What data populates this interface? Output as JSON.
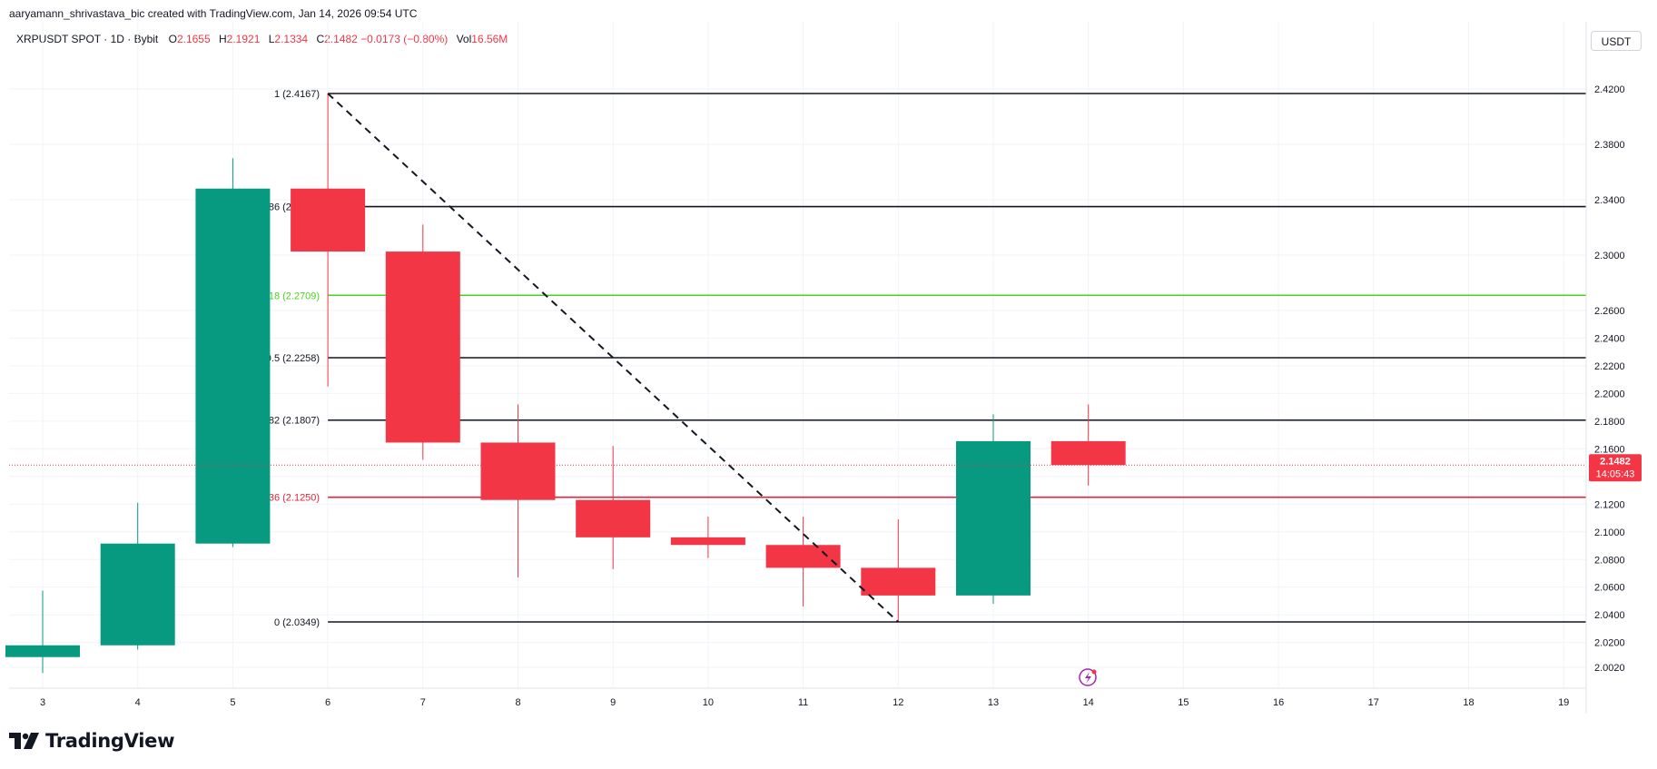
{
  "header": {
    "credit": "aaryamann_shrivastava_bic created with TradingView.com, Jan 14, 2026 09:54 UTC"
  },
  "legend": {
    "symbol": "XRPUSDT SPOT · 1D · Bybit",
    "o_label": "O",
    "o_value": "2.1655",
    "h_label": "H",
    "h_value": "2.1921",
    "l_label": "L",
    "l_value": "2.1334",
    "c_label": "C",
    "c_value": "2.1482 −0.0173 (−0.80%)",
    "vol_label": "Vol",
    "vol_value": "16.56M"
  },
  "currency": "USDT",
  "footer": {
    "brand": "TradingView"
  },
  "price_tag": {
    "price": "2.1482",
    "countdown": "14:05:43"
  },
  "chart_data": {
    "type": "candlestick",
    "title": "",
    "x_tick_labels": [
      "3",
      "4",
      "5",
      "6",
      "7",
      "8",
      "9",
      "10",
      "11",
      "12",
      "13",
      "14",
      "15",
      "16",
      "17",
      "18",
      "19"
    ],
    "y_tick_labels": [
      "2.4200",
      "2.3800",
      "2.3400",
      "2.3000",
      "2.2600",
      "2.2400",
      "2.2200",
      "2.2000",
      "2.1800",
      "2.1600",
      "2.1400",
      "2.1200",
      "2.1000",
      "2.0800",
      "2.0600",
      "2.0400",
      "2.0200",
      "2.0020"
    ],
    "candles": [
      {
        "day": 3,
        "open": 2.0095,
        "high": 2.0575,
        "low": 1.998,
        "close": 2.018
      },
      {
        "day": 4,
        "open": 2.018,
        "high": 2.121,
        "low": 2.015,
        "close": 2.0915
      },
      {
        "day": 5,
        "open": 2.0915,
        "high": 2.37,
        "low": 2.089,
        "close": 2.348
      },
      {
        "day": 6,
        "open": 2.348,
        "high": 2.4167,
        "low": 2.205,
        "close": 2.3025
      },
      {
        "day": 7,
        "open": 2.3025,
        "high": 2.322,
        "low": 2.152,
        "close": 2.1645
      },
      {
        "day": 8,
        "open": 2.1645,
        "high": 2.192,
        "low": 2.067,
        "close": 2.123
      },
      {
        "day": 9,
        "open": 2.123,
        "high": 2.162,
        "low": 2.073,
        "close": 2.096
      },
      {
        "day": 10,
        "open": 2.096,
        "high": 2.111,
        "low": 2.081,
        "close": 2.0905
      },
      {
        "day": 11,
        "open": 2.0905,
        "high": 2.111,
        "low": 2.046,
        "close": 2.074
      },
      {
        "day": 12,
        "open": 2.074,
        "high": 2.109,
        "low": 2.0349,
        "close": 2.054
      },
      {
        "day": 13,
        "open": 2.054,
        "high": 2.185,
        "low": 2.048,
        "close": 2.1655
      },
      {
        "day": 14,
        "open": 2.1655,
        "high": 2.1921,
        "low": 2.1334,
        "close": 2.1482
      }
    ],
    "fib_levels": [
      {
        "ratio": 1,
        "price": 2.4167,
        "label": "1 (2.4167)",
        "color": "#131722"
      },
      {
        "ratio": 0.786,
        "price": 2.335,
        "label": "0.786 (2.3350)",
        "color": "#131722"
      },
      {
        "ratio": 0.618,
        "price": 2.2709,
        "label": "0.618 (2.2709)",
        "color": "#4cd11f"
      },
      {
        "ratio": 0.5,
        "price": 2.2258,
        "label": "0.5 (2.2258)",
        "color": "#131722"
      },
      {
        "ratio": 0.382,
        "price": 2.1807,
        "label": "0.382 (2.1807)",
        "color": "#131722"
      },
      {
        "ratio": 0.236,
        "price": 2.125,
        "label": "0.236 (2.1250)",
        "color": "#e02538"
      },
      {
        "ratio": 0,
        "price": 2.0349,
        "label": "0 (2.0349)",
        "color": "#131722"
      }
    ],
    "trend_line": {
      "from_day": 6,
      "from_price": 2.4167,
      "to_day": 12,
      "to_price": 2.0349
    },
    "current_price": 2.1482,
    "up_color": "#089981",
    "down_color": "#f23645",
    "grid": true,
    "event_marker_day": 14
  }
}
